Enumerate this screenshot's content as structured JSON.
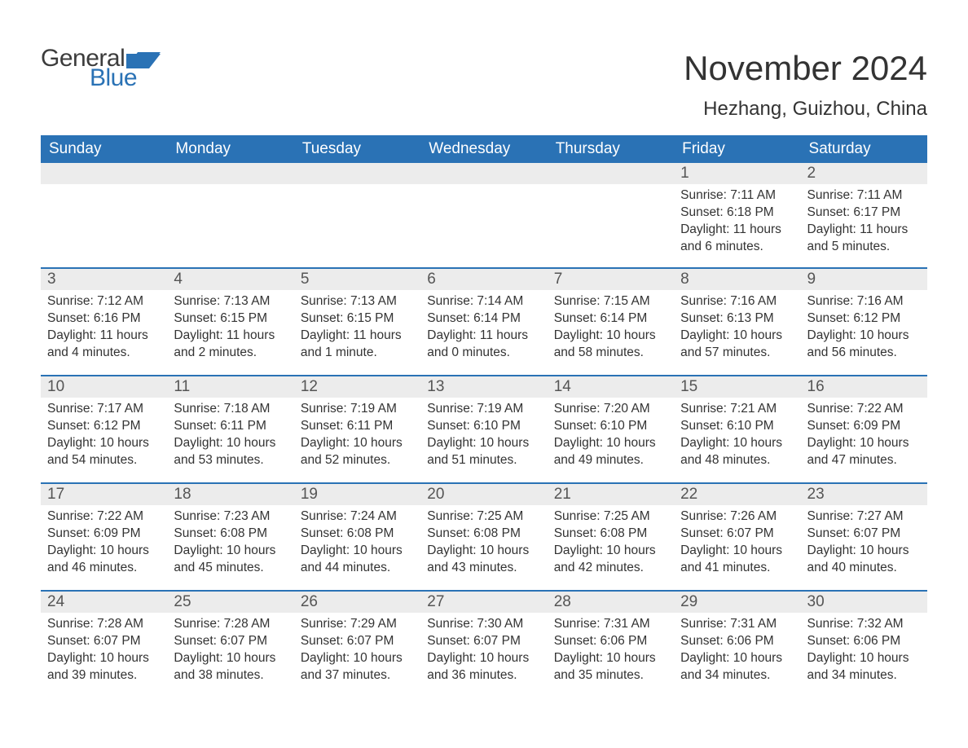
{
  "brand": {
    "word1": "General",
    "word2": "Blue",
    "flag_color": "#2a72b5"
  },
  "title": "November 2024",
  "location": "Hezhang, Guizhou, China",
  "colors": {
    "header_bg": "#2a72b5",
    "header_text": "#ffffff",
    "daynum_bg": "#ececec",
    "row_border": "#2a72b5",
    "body_text": "#333333",
    "background": "#ffffff"
  },
  "fonts": {
    "title_size": 42,
    "location_size": 24,
    "dayheader_size": 19,
    "daynum_size": 19,
    "body_size": 15.5
  },
  "day_headers": [
    "Sunday",
    "Monday",
    "Tuesday",
    "Wednesday",
    "Thursday",
    "Friday",
    "Saturday"
  ],
  "weeks": [
    [
      {
        "empty": true
      },
      {
        "empty": true
      },
      {
        "empty": true
      },
      {
        "empty": true
      },
      {
        "empty": true
      },
      {
        "day": "1",
        "sunrise": "Sunrise: 7:11 AM",
        "sunset": "Sunset: 6:18 PM",
        "daylight": "Daylight: 11 hours and 6 minutes."
      },
      {
        "day": "2",
        "sunrise": "Sunrise: 7:11 AM",
        "sunset": "Sunset: 6:17 PM",
        "daylight": "Daylight: 11 hours and 5 minutes."
      }
    ],
    [
      {
        "day": "3",
        "sunrise": "Sunrise: 7:12 AM",
        "sunset": "Sunset: 6:16 PM",
        "daylight": "Daylight: 11 hours and 4 minutes."
      },
      {
        "day": "4",
        "sunrise": "Sunrise: 7:13 AM",
        "sunset": "Sunset: 6:15 PM",
        "daylight": "Daylight: 11 hours and 2 minutes."
      },
      {
        "day": "5",
        "sunrise": "Sunrise: 7:13 AM",
        "sunset": "Sunset: 6:15 PM",
        "daylight": "Daylight: 11 hours and 1 minute."
      },
      {
        "day": "6",
        "sunrise": "Sunrise: 7:14 AM",
        "sunset": "Sunset: 6:14 PM",
        "daylight": "Daylight: 11 hours and 0 minutes."
      },
      {
        "day": "7",
        "sunrise": "Sunrise: 7:15 AM",
        "sunset": "Sunset: 6:14 PM",
        "daylight": "Daylight: 10 hours and 58 minutes."
      },
      {
        "day": "8",
        "sunrise": "Sunrise: 7:16 AM",
        "sunset": "Sunset: 6:13 PM",
        "daylight": "Daylight: 10 hours and 57 minutes."
      },
      {
        "day": "9",
        "sunrise": "Sunrise: 7:16 AM",
        "sunset": "Sunset: 6:12 PM",
        "daylight": "Daylight: 10 hours and 56 minutes."
      }
    ],
    [
      {
        "day": "10",
        "sunrise": "Sunrise: 7:17 AM",
        "sunset": "Sunset: 6:12 PM",
        "daylight": "Daylight: 10 hours and 54 minutes."
      },
      {
        "day": "11",
        "sunrise": "Sunrise: 7:18 AM",
        "sunset": "Sunset: 6:11 PM",
        "daylight": "Daylight: 10 hours and 53 minutes."
      },
      {
        "day": "12",
        "sunrise": "Sunrise: 7:19 AM",
        "sunset": "Sunset: 6:11 PM",
        "daylight": "Daylight: 10 hours and 52 minutes."
      },
      {
        "day": "13",
        "sunrise": "Sunrise: 7:19 AM",
        "sunset": "Sunset: 6:10 PM",
        "daylight": "Daylight: 10 hours and 51 minutes."
      },
      {
        "day": "14",
        "sunrise": "Sunrise: 7:20 AM",
        "sunset": "Sunset: 6:10 PM",
        "daylight": "Daylight: 10 hours and 49 minutes."
      },
      {
        "day": "15",
        "sunrise": "Sunrise: 7:21 AM",
        "sunset": "Sunset: 6:10 PM",
        "daylight": "Daylight: 10 hours and 48 minutes."
      },
      {
        "day": "16",
        "sunrise": "Sunrise: 7:22 AM",
        "sunset": "Sunset: 6:09 PM",
        "daylight": "Daylight: 10 hours and 47 minutes."
      }
    ],
    [
      {
        "day": "17",
        "sunrise": "Sunrise: 7:22 AM",
        "sunset": "Sunset: 6:09 PM",
        "daylight": "Daylight: 10 hours and 46 minutes."
      },
      {
        "day": "18",
        "sunrise": "Sunrise: 7:23 AM",
        "sunset": "Sunset: 6:08 PM",
        "daylight": "Daylight: 10 hours and 45 minutes."
      },
      {
        "day": "19",
        "sunrise": "Sunrise: 7:24 AM",
        "sunset": "Sunset: 6:08 PM",
        "daylight": "Daylight: 10 hours and 44 minutes."
      },
      {
        "day": "20",
        "sunrise": "Sunrise: 7:25 AM",
        "sunset": "Sunset: 6:08 PM",
        "daylight": "Daylight: 10 hours and 43 minutes."
      },
      {
        "day": "21",
        "sunrise": "Sunrise: 7:25 AM",
        "sunset": "Sunset: 6:08 PM",
        "daylight": "Daylight: 10 hours and 42 minutes."
      },
      {
        "day": "22",
        "sunrise": "Sunrise: 7:26 AM",
        "sunset": "Sunset: 6:07 PM",
        "daylight": "Daylight: 10 hours and 41 minutes."
      },
      {
        "day": "23",
        "sunrise": "Sunrise: 7:27 AM",
        "sunset": "Sunset: 6:07 PM",
        "daylight": "Daylight: 10 hours and 40 minutes."
      }
    ],
    [
      {
        "day": "24",
        "sunrise": "Sunrise: 7:28 AM",
        "sunset": "Sunset: 6:07 PM",
        "daylight": "Daylight: 10 hours and 39 minutes."
      },
      {
        "day": "25",
        "sunrise": "Sunrise: 7:28 AM",
        "sunset": "Sunset: 6:07 PM",
        "daylight": "Daylight: 10 hours and 38 minutes."
      },
      {
        "day": "26",
        "sunrise": "Sunrise: 7:29 AM",
        "sunset": "Sunset: 6:07 PM",
        "daylight": "Daylight: 10 hours and 37 minutes."
      },
      {
        "day": "27",
        "sunrise": "Sunrise: 7:30 AM",
        "sunset": "Sunset: 6:07 PM",
        "daylight": "Daylight: 10 hours and 36 minutes."
      },
      {
        "day": "28",
        "sunrise": "Sunrise: 7:31 AM",
        "sunset": "Sunset: 6:06 PM",
        "daylight": "Daylight: 10 hours and 35 minutes."
      },
      {
        "day": "29",
        "sunrise": "Sunrise: 7:31 AM",
        "sunset": "Sunset: 6:06 PM",
        "daylight": "Daylight: 10 hours and 34 minutes."
      },
      {
        "day": "30",
        "sunrise": "Sunrise: 7:32 AM",
        "sunset": "Sunset: 6:06 PM",
        "daylight": "Daylight: 10 hours and 34 minutes."
      }
    ]
  ]
}
